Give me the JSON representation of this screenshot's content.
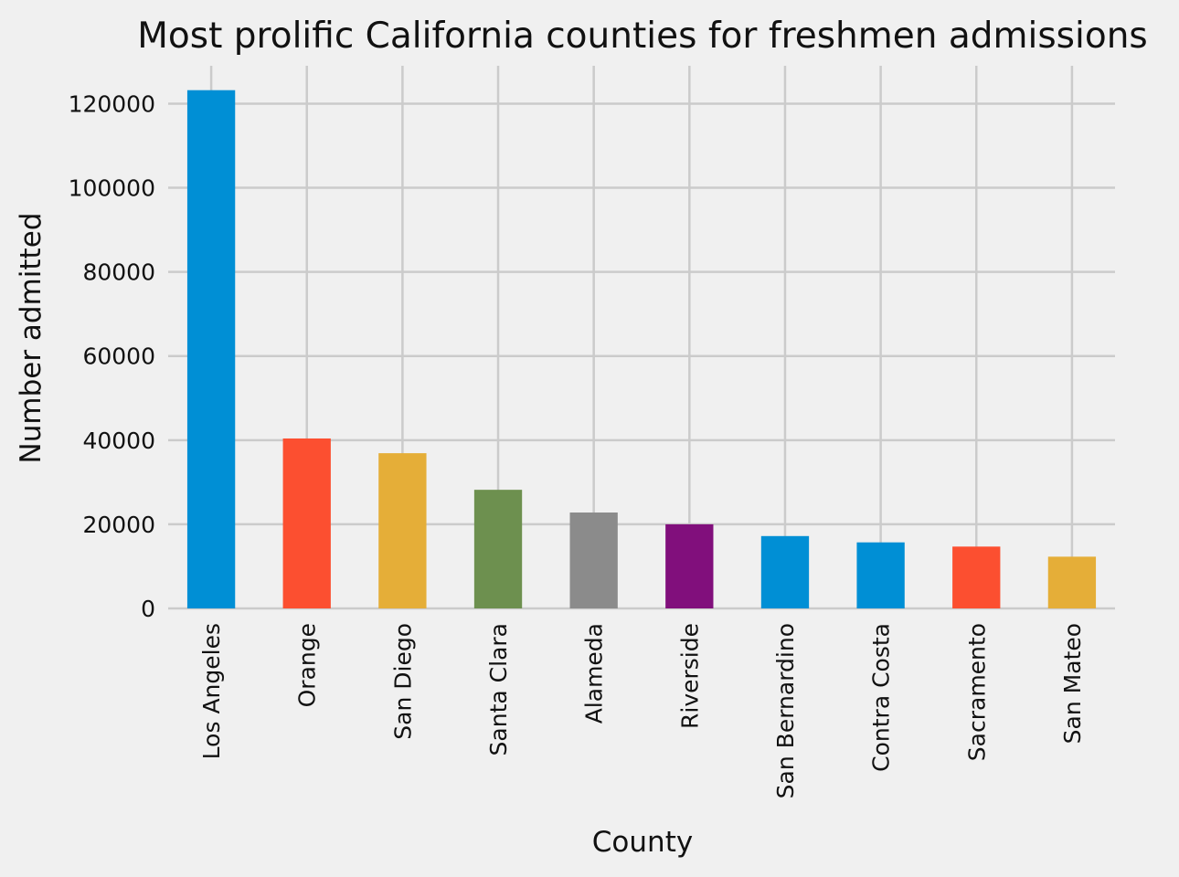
{
  "chart_data": {
    "type": "bar",
    "title": "Most prolific California counties for freshmen admissions",
    "xlabel": "County",
    "ylabel": "Number admitted",
    "categories": [
      "Los Angeles",
      "Orange",
      "San Diego",
      "Santa Clara",
      "Alameda",
      "Riverside",
      "San Bernardino",
      "Contra Costa",
      "Sacramento",
      "San Mateo"
    ],
    "values": [
      123200,
      40400,
      36900,
      28200,
      22800,
      20000,
      17200,
      15700,
      14700,
      12300
    ],
    "colors": [
      "#008fd5",
      "#fc4f30",
      "#e5ae38",
      "#6d904f",
      "#8b8b8b",
      "#810f7c",
      "#008fd5",
      "#008fd5",
      "#fc4f30",
      "#e5ae38"
    ],
    "ylim": [
      0,
      129000
    ],
    "yticks": [
      0,
      20000,
      40000,
      60000,
      80000,
      100000,
      120000
    ],
    "grid": true,
    "background": "#f0f0f0",
    "grid_color": "#cbcbcb"
  }
}
